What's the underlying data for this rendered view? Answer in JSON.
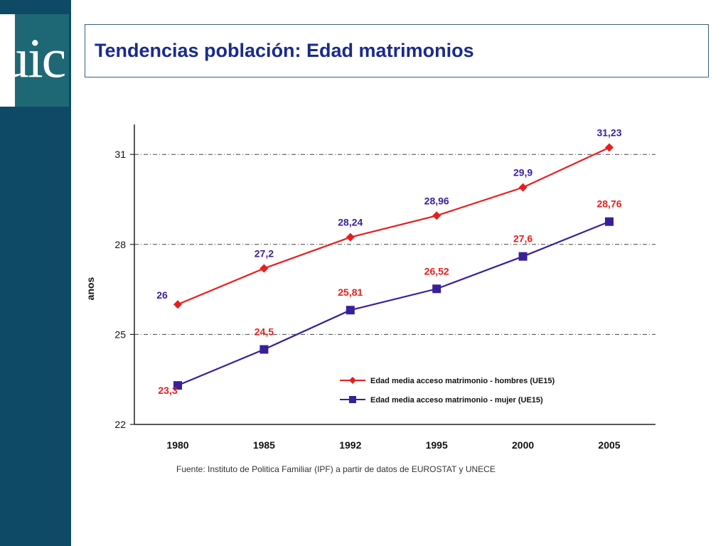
{
  "header": {
    "logo_text": "uic",
    "title": "Tendencias población: Edad matrimonios"
  },
  "colors": {
    "sidebar": "#0e4a66",
    "logo_bg": "#1e6876",
    "title": "#1a2a8c",
    "men": "#e81e1e",
    "women": "#3a1f9a"
  },
  "chart_data": {
    "type": "line",
    "categories": [
      "1980",
      "1985",
      "1992",
      "1995",
      "2000",
      "2005"
    ],
    "series": [
      {
        "name": "Edad media acceso matrimonio - hombres (UE15)",
        "values": [
          26,
          27.2,
          28.24,
          28.96,
          29.9,
          31.23
        ],
        "labels": [
          "26",
          "27,2",
          "28,24",
          "28,96",
          "29,9",
          "31,23"
        ],
        "color": "#e81e1e",
        "label_color": "#3a1f9a",
        "marker": "diamond"
      },
      {
        "name": "Edad media acceso matrimonio - mujer (UE15)",
        "values": [
          23.3,
          24.5,
          25.81,
          26.52,
          27.6,
          28.76
        ],
        "labels": [
          "23,3",
          "24,5",
          "25,81",
          "26,52",
          "27,6",
          "28,76"
        ],
        "color": "#3a1f9a",
        "label_color": "#e81e1e",
        "marker": "square"
      }
    ],
    "ylabel": "anos",
    "ylim": [
      22,
      32
    ],
    "yticks": [
      22,
      25,
      28,
      31
    ],
    "ytick_labels": [
      "22",
      "25",
      "28",
      "31"
    ],
    "grid": "horizontal dash-dot",
    "legend_position": "bottom-right",
    "source": "Fuente: Instituto de Politica Familiar (IPF) a partir de datos de EUROSTAT y UNECE"
  }
}
